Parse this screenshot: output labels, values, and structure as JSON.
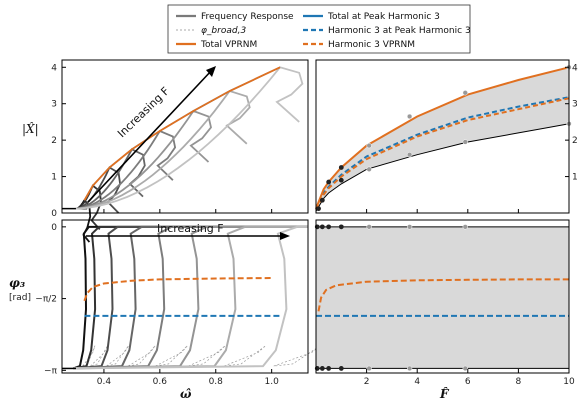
{
  "legend": {
    "entries": [
      {
        "label": "Frequency Response",
        "color": "#7a7a7a",
        "style": "solid"
      },
      {
        "label": "φ_broad,3",
        "color": "#aaaaaa",
        "style": "dashed-thin"
      },
      {
        "label": "Total VPRNM",
        "color": "#e07020",
        "style": "solid"
      },
      {
        "label": "Total at Peak Harmonic 3",
        "color": "#1f77b4",
        "style": "solid"
      },
      {
        "label": "Harmonic 3 at Peak Harmonic 3",
        "color": "#1f77b4",
        "style": "dashed"
      },
      {
        "label": "Harmonic 3 VPRNM",
        "color": "#e07020",
        "style": "dashed"
      }
    ]
  },
  "annotations": {
    "top_left": "Increasing F",
    "bottom_left": "Increasing F"
  },
  "colors": {
    "orange": "#e07020",
    "blue": "#1f77b4",
    "band": "#d9d9d9"
  },
  "chart_data": [
    {
      "type": "line",
      "panel": "top-left",
      "ylabel": "|X̂|",
      "xlim": [
        0.25,
        1.13
      ],
      "ylim": [
        0,
        4.2
      ],
      "yticks": [
        "0",
        "1",
        "2",
        "3",
        "4"
      ],
      "grid": false,
      "curves_count": 8,
      "total_vprnm": {
        "x": [
          0.33,
          0.36,
          0.42,
          0.5,
          0.6,
          0.72,
          0.85,
          1.03
        ],
        "y": [
          0.35,
          0.75,
          1.25,
          1.75,
          2.25,
          2.8,
          3.35,
          4.0
        ]
      },
      "total_at_peak_h3": {
        "x": [
          0.33,
          0.36,
          0.42,
          0.5,
          0.6,
          0.72,
          0.85,
          1.03
        ],
        "y": [
          0.35,
          0.75,
          1.25,
          1.75,
          2.25,
          2.8,
          3.35,
          4.0
        ]
      }
    },
    {
      "type": "line",
      "panel": "top-right",
      "xlim": [
        0,
        10
      ],
      "ylim": [
        0,
        4.2
      ],
      "yticks": [
        "1",
        "2",
        "3",
        "4"
      ],
      "series": [
        {
          "name": "Total VPRNM",
          "x": [
            0,
            0.3,
            0.5,
            1,
            2,
            4,
            6,
            8,
            10
          ],
          "y": [
            0.12,
            0.65,
            0.85,
            1.25,
            1.85,
            2.65,
            3.25,
            3.65,
            4.0
          ]
        },
        {
          "name": "Harmonic 3 VPRNM",
          "x": [
            0,
            0.3,
            0.5,
            1,
            2,
            4,
            6,
            8,
            10
          ],
          "y": [
            0.1,
            0.5,
            0.68,
            1.0,
            1.48,
            2.1,
            2.55,
            2.85,
            3.15
          ]
        },
        {
          "name": "Harmonic 3 at Peak Harmonic 3",
          "x": [
            0,
            0.3,
            0.5,
            1,
            2,
            4,
            6,
            8,
            10
          ],
          "y": [
            0.1,
            0.55,
            0.72,
            1.05,
            1.55,
            2.15,
            2.62,
            2.92,
            3.18
          ]
        },
        {
          "x": [
            0,
            0.3,
            0.5,
            1,
            2,
            4,
            6,
            8,
            10
          ],
          "y": [
            0.05,
            0.4,
            0.55,
            0.8,
            1.2,
            1.6,
            1.95,
            2.2,
            2.45
          ]
        }
      ],
      "markers_black": [
        [
          0.1,
          0.12
        ],
        [
          0.25,
          0.35
        ],
        [
          0.5,
          0.85
        ],
        [
          1,
          0.9
        ],
        [
          1,
          1.25
        ]
      ],
      "markers_gray": [
        [
          2.1,
          1.2
        ],
        [
          2.1,
          1.85
        ],
        [
          3.7,
          1.6
        ],
        [
          3.7,
          2.65
        ],
        [
          5.9,
          1.95
        ],
        [
          5.9,
          3.3
        ],
        [
          10,
          2.45
        ],
        [
          10,
          4.0
        ]
      ]
    },
    {
      "type": "line",
      "panel": "bottom-left",
      "xlabel": "ω̂",
      "ylabel": "φ₃ [rad]",
      "xlim": [
        0.25,
        1.13
      ],
      "ylim": [
        -3.2,
        0.15
      ],
      "xticks": [
        "0.4",
        "0.6",
        "0.8",
        "1.0"
      ],
      "yticks": [
        "0",
        "−π/2",
        "−π"
      ],
      "series": [
        {
          "name": "Harmonic 3 VPRNM",
          "x": [
            0.33,
            0.34,
            0.36,
            0.4,
            0.5,
            0.6,
            0.8,
            1.0
          ],
          "y": [
            -1.62,
            -1.45,
            -1.32,
            -1.24,
            -1.18,
            -1.15,
            -1.13,
            -1.12
          ]
        },
        {
          "name": "Harmonic 3 at Peak Harmonic 3",
          "x": [
            0.33,
            1.03
          ],
          "y": [
            -1.95,
            -1.95
          ]
        }
      ]
    },
    {
      "type": "line",
      "panel": "bottom-right",
      "xlabel": "F̂",
      "xlim": [
        0,
        10
      ],
      "ylim": [
        -3.2,
        0.15
      ],
      "xticks": [
        "2",
        "4",
        "6",
        "8",
        "10"
      ],
      "series": [
        {
          "name": "Harmonic 3 VPRNM",
          "x": [
            0.1,
            0.2,
            0.4,
            0.8,
            2,
            4,
            6,
            8,
            10
          ],
          "y": [
            -1.85,
            -1.55,
            -1.38,
            -1.28,
            -1.2,
            -1.17,
            -1.16,
            -1.15,
            -1.15
          ]
        },
        {
          "name": "Harmonic 3 at Peak Harmonic 3",
          "x": [
            0,
            10
          ],
          "y": [
            -1.95,
            -1.95
          ]
        }
      ],
      "markers_black": [
        [
          0.05,
          0
        ],
        [
          0.25,
          0
        ],
        [
          0.5,
          0
        ],
        [
          1,
          0
        ],
        [
          0.05,
          -3.1
        ],
        [
          0.25,
          -3.1
        ],
        [
          0.5,
          -3.1
        ],
        [
          1,
          -3.1
        ]
      ],
      "markers_gray": [
        [
          2.1,
          0
        ],
        [
          3.7,
          0
        ],
        [
          5.9,
          0
        ],
        [
          2.1,
          -3.1
        ],
        [
          3.7,
          -3.1
        ],
        [
          5.9,
          -3.1
        ]
      ]
    }
  ]
}
